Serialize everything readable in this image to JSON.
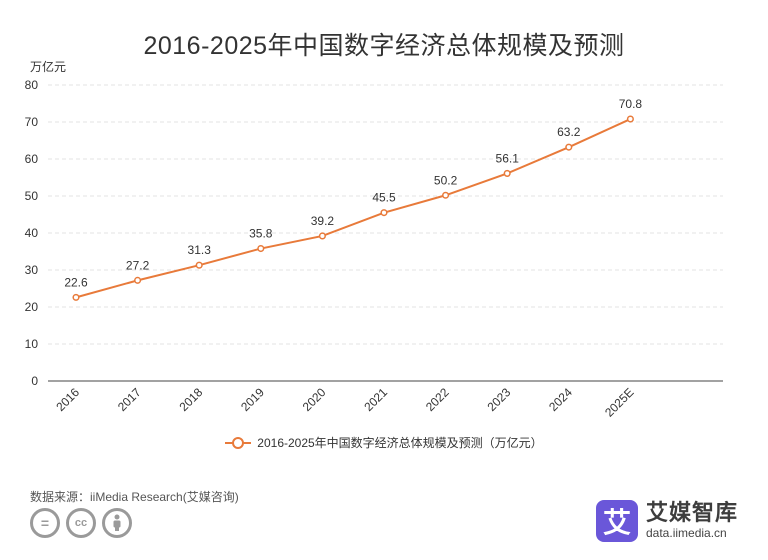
{
  "header": {
    "unit": "万亿元"
  },
  "footer": {
    "source": "数据来源：iiMedia Research(艾媒咨询)",
    "brand_icon_char": "艾",
    "brand_name": "艾媒智库",
    "brand_url": "data.iimedia.cn",
    "cc_icons": [
      "equals-icon",
      "cc-icon",
      "person-icon"
    ]
  },
  "chart_data": {
    "type": "line",
    "title": "2016-2025年中国数字经济总体规模及预测",
    "categories": [
      "2016",
      "2017",
      "2018",
      "2019",
      "2020",
      "2021",
      "2022",
      "2023",
      "2024",
      "2025E"
    ],
    "series": [
      {
        "name": "2016-2025年中国数字经济总体规模及预测（万亿元）",
        "values": [
          22.6,
          27.2,
          31.3,
          35.8,
          39.2,
          45.5,
          50.2,
          56.1,
          63.2,
          70.8
        ],
        "color": "#e87a3a"
      }
    ],
    "ylabel": "万亿元",
    "ylim": [
      0,
      80
    ],
    "yticks": [
      0,
      10,
      20,
      30,
      40,
      50,
      60,
      70,
      80
    ],
    "grid": true,
    "legend_position": "bottom",
    "data_labels": true
  }
}
